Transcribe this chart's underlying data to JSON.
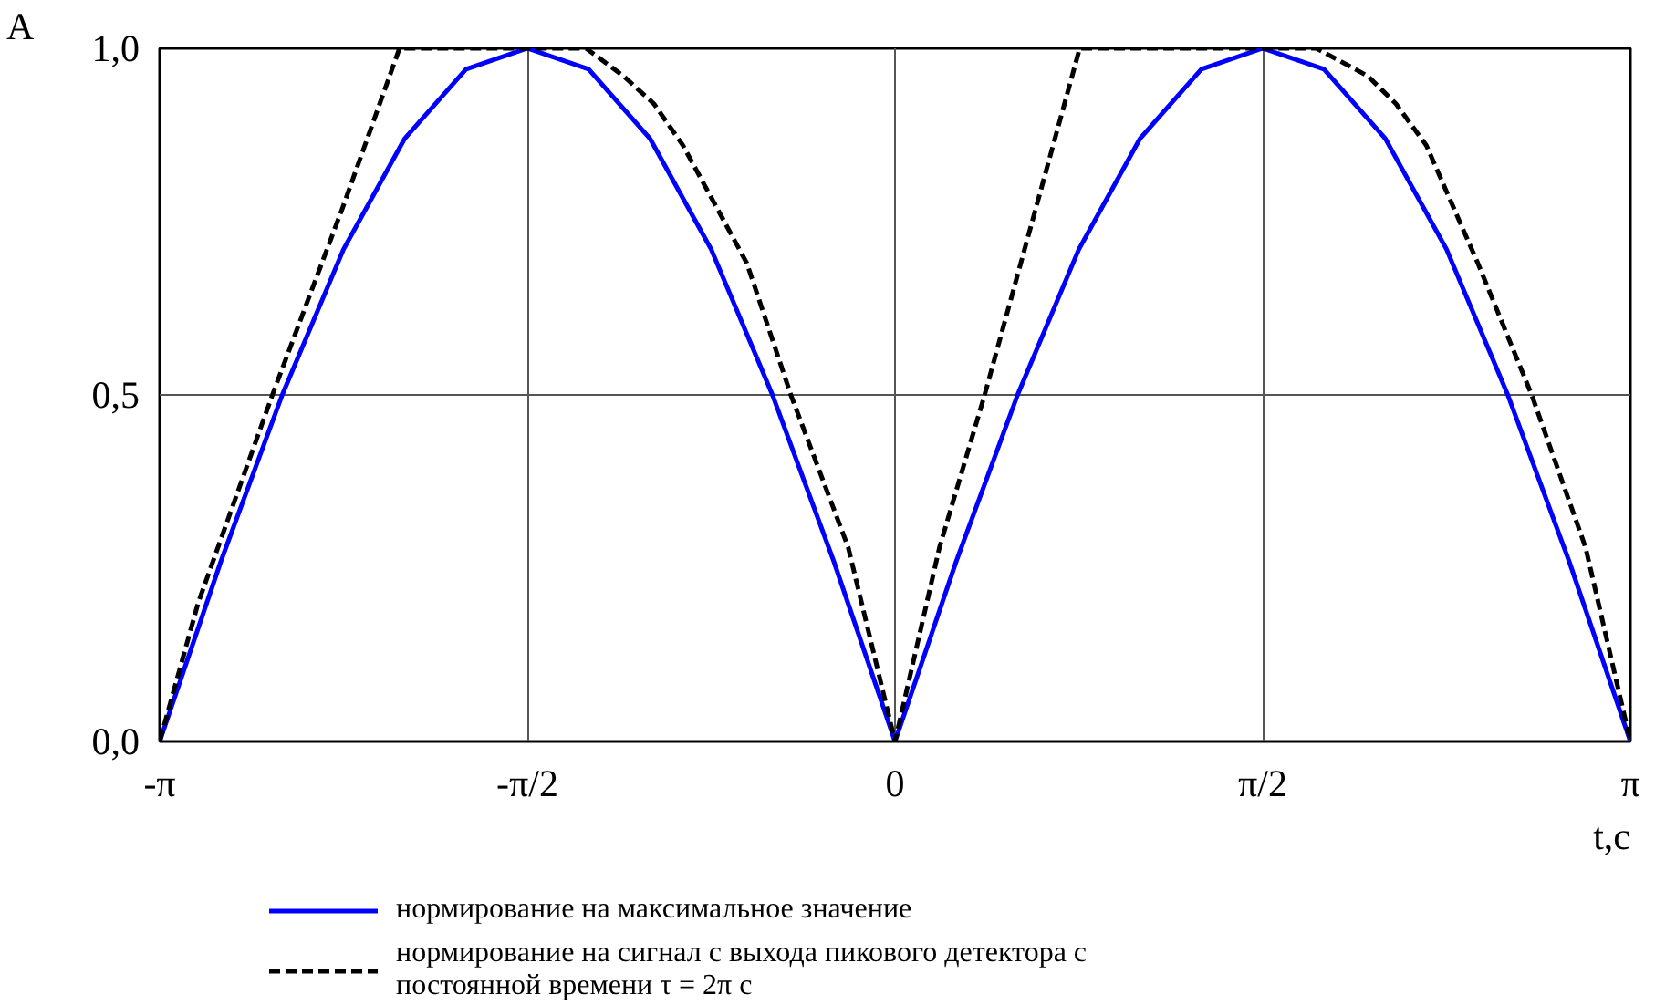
{
  "chart_data": {
    "type": "line",
    "xlabel": "t,c",
    "ylabel": "A",
    "xlim": [
      -3.1416,
      3.1416
    ],
    "ylim": [
      0,
      1
    ],
    "xticks": [
      {
        "value": -3.1416,
        "label": "-π"
      },
      {
        "value": -1.5708,
        "label": "-π/2"
      },
      0,
      {
        "value": 1.5708,
        "label": "π/2"
      },
      {
        "value": 3.1416,
        "label": "π"
      }
    ],
    "yticks": [
      {
        "value": 0,
        "label": "0,0"
      },
      {
        "value": 0.5,
        "label": "0,5"
      },
      {
        "value": 1,
        "label": "1,0"
      }
    ],
    "grid": true,
    "legend": "bottom",
    "marker": "none",
    "series": [
      {
        "name": "нормирование на максимальное значение",
        "color": "#0000ff",
        "line_style": "solid",
        "x": [
          -3.1416,
          -2.8798,
          -2.618,
          -2.3562,
          -2.0944,
          -1.8326,
          -1.5708,
          -1.309,
          -1.0472,
          -0.7854,
          -0.5236,
          -0.2618,
          0,
          0.2618,
          0.5236,
          0.7854,
          1.0472,
          1.309,
          1.5708,
          1.8326,
          2.0944,
          2.3562,
          2.618,
          2.8798,
          3.1416
        ],
        "values": [
          0,
          0.26,
          0.5,
          0.71,
          0.87,
          0.97,
          1,
          0.97,
          0.87,
          0.71,
          0.5,
          0.26,
          0,
          0.26,
          0.5,
          0.71,
          0.87,
          0.97,
          1,
          0.97,
          0.87,
          0.71,
          0.5,
          0.26,
          0
        ]
      },
      {
        "name": "нормирование на сигнал с выхода пикового детектора с постоянной времени τ = 2π c",
        "color": "#000000",
        "line_style": "dashed",
        "x": [
          -3.1416,
          -2.977,
          -2.66,
          -2.36,
          -2.117,
          -1.32,
          -1.16,
          -1.03,
          -0.906,
          -0.633,
          -0.445,
          -0.2,
          0,
          0.19,
          0.383,
          0.789,
          1.8,
          2.02,
          2.14,
          2.27,
          2.49,
          2.72,
          2.95,
          3.1416
        ],
        "values": [
          0,
          0.2,
          0.5,
          0.77,
          1,
          1,
          0.96,
          0.92,
          0.86,
          0.69,
          0.5,
          0.28,
          0,
          0.28,
          0.5,
          1,
          1,
          0.96,
          0.92,
          0.86,
          0.69,
          0.5,
          0.28,
          0
        ]
      }
    ]
  }
}
